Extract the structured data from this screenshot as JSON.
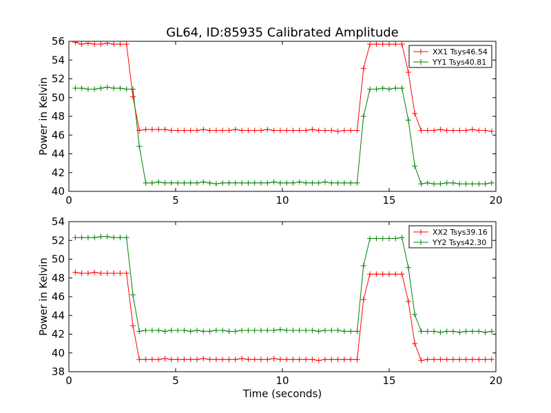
{
  "title": "GL64, ID:85935 Calibrated Amplitude",
  "chart_data": [
    {
      "type": "line",
      "xlabel": "",
      "ylabel": "Power in Kelvin",
      "xlim": [
        0,
        20
      ],
      "ylim": [
        40,
        56
      ],
      "xticks": [
        0,
        5,
        10,
        15,
        20
      ],
      "yticks": [
        40,
        42,
        44,
        46,
        48,
        50,
        52,
        54,
        56
      ],
      "grid": false,
      "legend_position": "top-right",
      "x": [
        0.3,
        0.6,
        0.9,
        1.2,
        1.5,
        1.8,
        2.1,
        2.4,
        2.7,
        3.0,
        3.3,
        3.6,
        3.9,
        4.2,
        4.5,
        4.8,
        5.1,
        5.4,
        5.7,
        6.0,
        6.3,
        6.6,
        6.9,
        7.2,
        7.5,
        7.8,
        8.1,
        8.4,
        8.7,
        9.0,
        9.3,
        9.6,
        9.9,
        10.2,
        10.5,
        10.8,
        11.1,
        11.4,
        11.7,
        12.0,
        12.3,
        12.6,
        12.9,
        13.2,
        13.5,
        13.8,
        14.1,
        14.4,
        14.7,
        15.0,
        15.3,
        15.6,
        15.9,
        16.2,
        16.5,
        16.8,
        17.1,
        17.4,
        17.7,
        18.0,
        18.3,
        18.6,
        18.9,
        19.2,
        19.5,
        19.8
      ],
      "series": [
        {
          "name": "XX1 Tsys46.54",
          "color": "#ff0000",
          "values": [
            55.9,
            55.7,
            55.8,
            55.7,
            55.7,
            55.8,
            55.7,
            55.7,
            55.7,
            50.1,
            46.5,
            46.6,
            46.6,
            46.6,
            46.6,
            46.5,
            46.5,
            46.5,
            46.5,
            46.5,
            46.6,
            46.5,
            46.5,
            46.5,
            46.5,
            46.6,
            46.5,
            46.5,
            46.5,
            46.5,
            46.6,
            46.5,
            46.5,
            46.5,
            46.5,
            46.5,
            46.5,
            46.6,
            46.5,
            46.5,
            46.5,
            46.4,
            46.5,
            46.5,
            46.5,
            53.1,
            55.7,
            55.7,
            55.7,
            55.7,
            55.7,
            55.7,
            52.7,
            48.3,
            46.5,
            46.5,
            46.5,
            46.6,
            46.5,
            46.5,
            46.5,
            46.5,
            46.6,
            46.5,
            46.5,
            46.4
          ]
        },
        {
          "name": "YY1 Tsys40.81",
          "color": "#008000",
          "values": [
            51.0,
            51.0,
            50.9,
            50.9,
            51.0,
            51.1,
            51.0,
            51.0,
            50.9,
            50.9,
            44.8,
            40.9,
            40.9,
            41.0,
            40.9,
            40.9,
            40.9,
            40.9,
            40.9,
            40.9,
            41.0,
            40.9,
            40.8,
            40.9,
            40.9,
            40.9,
            40.9,
            40.9,
            40.9,
            40.9,
            40.9,
            41.0,
            40.9,
            40.9,
            40.9,
            41.0,
            40.9,
            40.9,
            40.9,
            41.0,
            40.9,
            40.9,
            40.9,
            40.9,
            40.9,
            48.0,
            50.9,
            50.9,
            51.0,
            50.9,
            51.0,
            51.0,
            47.6,
            42.7,
            40.8,
            40.9,
            40.8,
            40.8,
            40.9,
            40.9,
            40.8,
            40.8,
            40.8,
            40.8,
            40.8,
            40.9
          ]
        }
      ]
    },
    {
      "type": "line",
      "xlabel": "Time (seconds)",
      "ylabel": "Power in Kelvin",
      "xlim": [
        0,
        20
      ],
      "ylim": [
        38,
        54
      ],
      "xticks": [
        0,
        5,
        10,
        15,
        20
      ],
      "yticks": [
        38,
        40,
        42,
        44,
        46,
        48,
        50,
        52,
        54
      ],
      "grid": false,
      "legend_position": "top-right",
      "x": [
        0.3,
        0.6,
        0.9,
        1.2,
        1.5,
        1.8,
        2.1,
        2.4,
        2.7,
        3.0,
        3.3,
        3.6,
        3.9,
        4.2,
        4.5,
        4.8,
        5.1,
        5.4,
        5.7,
        6.0,
        6.3,
        6.6,
        6.9,
        7.2,
        7.5,
        7.8,
        8.1,
        8.4,
        8.7,
        9.0,
        9.3,
        9.6,
        9.9,
        10.2,
        10.5,
        10.8,
        11.1,
        11.4,
        11.7,
        12.0,
        12.3,
        12.6,
        12.9,
        13.2,
        13.5,
        13.8,
        14.1,
        14.4,
        14.7,
        15.0,
        15.3,
        15.6,
        15.9,
        16.2,
        16.5,
        16.8,
        17.1,
        17.4,
        17.7,
        18.0,
        18.3,
        18.6,
        18.9,
        19.2,
        19.5,
        19.8
      ],
      "series": [
        {
          "name": "XX2 Tsys39.16",
          "color": "#ff0000",
          "values": [
            48.6,
            48.5,
            48.5,
            48.6,
            48.5,
            48.5,
            48.5,
            48.5,
            48.5,
            42.9,
            39.3,
            39.3,
            39.3,
            39.3,
            39.4,
            39.3,
            39.3,
            39.3,
            39.3,
            39.3,
            39.4,
            39.3,
            39.3,
            39.3,
            39.3,
            39.3,
            39.4,
            39.3,
            39.3,
            39.3,
            39.3,
            39.4,
            39.3,
            39.3,
            39.3,
            39.3,
            39.3,
            39.3,
            39.2,
            39.3,
            39.3,
            39.3,
            39.3,
            39.3,
            39.3,
            45.7,
            48.4,
            48.4,
            48.4,
            48.4,
            48.4,
            48.4,
            45.5,
            41.0,
            39.2,
            39.3,
            39.3,
            39.3,
            39.3,
            39.3,
            39.3,
            39.3,
            39.3,
            39.3,
            39.3,
            39.3
          ]
        },
        {
          "name": "YY2 Tsys42.30",
          "color": "#008000",
          "values": [
            52.3,
            52.3,
            52.3,
            52.3,
            52.4,
            52.4,
            52.3,
            52.3,
            52.3,
            46.2,
            42.3,
            42.4,
            42.4,
            42.4,
            42.3,
            42.4,
            42.4,
            42.4,
            42.3,
            42.4,
            42.3,
            42.3,
            42.4,
            42.4,
            42.3,
            42.3,
            42.4,
            42.4,
            42.4,
            42.4,
            42.4,
            42.4,
            42.5,
            42.4,
            42.4,
            42.4,
            42.4,
            42.4,
            42.3,
            42.4,
            42.4,
            42.4,
            42.3,
            42.3,
            42.3,
            49.3,
            52.2,
            52.2,
            52.2,
            52.2,
            52.2,
            52.3,
            49.1,
            44.1,
            42.3,
            42.3,
            42.3,
            42.2,
            42.3,
            42.3,
            42.2,
            42.3,
            42.3,
            42.3,
            42.2,
            42.3
          ]
        }
      ]
    }
  ]
}
